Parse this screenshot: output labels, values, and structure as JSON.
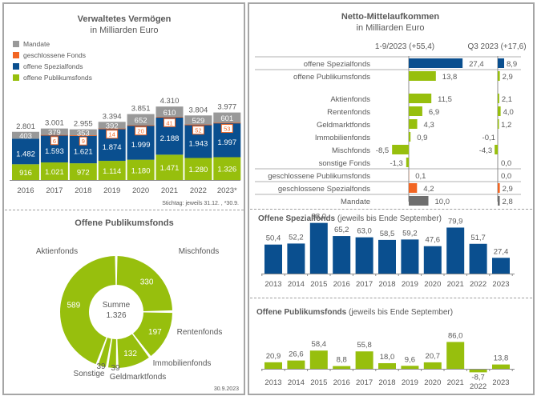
{
  "colors": {
    "mandate": "#999999",
    "geschlossen": "#f26522",
    "spezial": "#0a4f8f",
    "publikum": "#97bf0d",
    "text": "#595959",
    "mandate_dark": "#6e6e6e"
  },
  "chart_data": [
    {
      "id": "verwaltetes_vermoegen",
      "type": "bar",
      "stacked": true,
      "title": "Verwaltetes Vermögen",
      "subtitle": "in Milliarden Euro",
      "footnote": "Stichtag: jeweils 31.12. , *30.9.",
      "categories": [
        "2016",
        "2017",
        "2018",
        "2019",
        "2020",
        "2021",
        "2022",
        "2023*"
      ],
      "legend": [
        "Mandate",
        "geschlossene Fonds",
        "offene Spezialfonds",
        "offene Publikumsfonds"
      ],
      "legend_placement": "top-left",
      "series": [
        {
          "name": "offene Publikumsfonds",
          "key": "publikum",
          "values": [
            916,
            1021,
            972,
            1114,
            1180,
            1471,
            1280,
            1326
          ],
          "labels": [
            "916",
            "1.021",
            "972",
            "1.114",
            "1.180",
            "1.471",
            "1.280",
            "1.326"
          ]
        },
        {
          "name": "offene Spezialfonds",
          "key": "spezial",
          "values": [
            1482,
            1593,
            1621,
            1874,
            1999,
            2188,
            1943,
            1997
          ],
          "labels": [
            "1.482",
            "1.593",
            "1.621",
            "1.874",
            "1.999",
            "2.188",
            "1.943",
            "1.997"
          ]
        },
        {
          "name": "geschlossene Fonds",
          "key": "geschlossen",
          "values": [
            0,
            6,
            9,
            14,
            20,
            41,
            52,
            53
          ],
          "labels": [
            "",
            "6",
            "9",
            "14",
            "20",
            "41",
            "52",
            "53"
          ]
        },
        {
          "name": "Mandate",
          "key": "mandate",
          "values": [
            403,
            379,
            353,
            392,
            652,
            610,
            529,
            601
          ],
          "labels": [
            "403",
            "379",
            "353",
            "392",
            "652",
            "610",
            "529",
            "601"
          ]
        }
      ],
      "totals": [
        2801,
        3001,
        2955,
        3394,
        3851,
        4310,
        3804,
        3977
      ],
      "total_labels": [
        "2.801",
        "3.001",
        "2.955",
        "3.394",
        "3.851",
        "4.310",
        "3.804",
        "3.977"
      ]
    },
    {
      "id": "offene_publikumsfonds_donut",
      "type": "pie",
      "donut": true,
      "title": "Offene Publikumsfonds",
      "center_label": "Summe",
      "center_value": "1.326",
      "footnote": "30.9.2023",
      "slices": [
        {
          "name": "Mischfonds",
          "value": 330,
          "label": "330"
        },
        {
          "name": "Rentenfonds",
          "value": 197,
          "label": "197"
        },
        {
          "name": "Immobilienfonds",
          "value": 132,
          "label": "132"
        },
        {
          "name": "Geldmarktfonds",
          "value": 39,
          "label": "39"
        },
        {
          "name": "Sonstige",
          "value": 39,
          "label": "39"
        },
        {
          "name": "Aktienfonds",
          "value": 589,
          "label": "589"
        }
      ]
    },
    {
      "id": "netto_mittelaufkommen",
      "type": "bar",
      "orientation": "horizontal",
      "title": "Netto-Mittelaufkommen",
      "subtitle": "in Milliarden Euro",
      "column_headers": [
        "1-9/2023 (+55,4)",
        "Q3 2023 (+17,6)"
      ],
      "rows": [
        {
          "label": "offene Spezialfonds",
          "key": "spezial",
          "ytd": 27.4,
          "q3": 8.9,
          "ytd_label": "27,4",
          "q3_label": "8,9"
        },
        {
          "label": "offene Publikumsfonds",
          "key": "publikum",
          "ytd": 13.8,
          "q3": 2.9,
          "ytd_label": "13,8",
          "q3_label": "2,9"
        },
        {
          "label": "Aktienfonds",
          "key": "publikum",
          "ytd": 11.5,
          "q3": 2.1,
          "ytd_label": "11,5",
          "q3_label": "2,1"
        },
        {
          "label": "Rentenfonds",
          "key": "publikum",
          "ytd": 6.9,
          "q3": 4.0,
          "ytd_label": "6,9",
          "q3_label": "4,0"
        },
        {
          "label": "Geldmarktfonds",
          "key": "publikum",
          "ytd": 4.3,
          "q3": 1.2,
          "ytd_label": "4,3",
          "q3_label": "1,2"
        },
        {
          "label": "Immobilienfonds",
          "key": "publikum",
          "ytd": 0.9,
          "q3": -0.1,
          "ytd_label": "0,9",
          "q3_label": "-0,1"
        },
        {
          "label": "Mischfonds",
          "key": "publikum",
          "ytd": -8.5,
          "q3": -4.3,
          "ytd_label": "-8,5",
          "q3_label": "-4,3"
        },
        {
          "label": "sonstige Fonds",
          "key": "publikum",
          "ytd": -1.3,
          "q3": 0.0,
          "ytd_label": "-1,3",
          "q3_label": "0,0"
        },
        {
          "label": "geschlossene Publikumsfonds",
          "key": "geschlossen",
          "ytd": 0.1,
          "q3": 0.0,
          "ytd_label": "0,1",
          "q3_label": "0,0"
        },
        {
          "label": "geschlossene Spezialfonds",
          "key": "geschlossen",
          "ytd": 4.2,
          "q3": 2.9,
          "ytd_label": "4,2",
          "q3_label": "2,9"
        },
        {
          "label": "Mandate",
          "key": "mandate_dark",
          "ytd": 10.0,
          "q3": 2.8,
          "ytd_label": "10,0",
          "q3_label": "2,8"
        }
      ]
    },
    {
      "id": "offene_spezialfonds",
      "type": "bar",
      "title": "Offene Spezialfonds",
      "title_suffix": " (jeweils bis Ende September)",
      "categories": [
        "2013",
        "2014",
        "2015",
        "2016",
        "2017",
        "2018",
        "2019",
        "2020",
        "2021",
        "2022",
        "2023"
      ],
      "values": [
        50.4,
        52.2,
        88.0,
        65.2,
        63.0,
        58.5,
        59.2,
        47.6,
        79.9,
        51.7,
        27.4
      ],
      "labels": [
        "50,4",
        "52,2",
        "88,0",
        "65,2",
        "63,0",
        "58,5",
        "59,2",
        "47,6",
        "79,9",
        "51,7",
        "27,4"
      ],
      "color_key": "spezial"
    },
    {
      "id": "offene_publikumsfonds",
      "type": "bar",
      "title": "Offene Publikumsfonds",
      "title_suffix": " (jeweils bis Ende September)",
      "categories": [
        "2013",
        "2014",
        "2015",
        "2016",
        "2017",
        "2018",
        "2019",
        "2020",
        "2021",
        "2022",
        "2023"
      ],
      "values": [
        20.9,
        26.6,
        58.4,
        8.8,
        55.8,
        18.0,
        9.6,
        20.7,
        86.0,
        -8.7,
        13.8
      ],
      "labels": [
        "20,9",
        "26,6",
        "58,4",
        "8,8",
        "55,8",
        "18,0",
        "9,6",
        "20,7",
        "86,0",
        "-8,7",
        "13,8"
      ],
      "color_key": "publikum"
    }
  ]
}
